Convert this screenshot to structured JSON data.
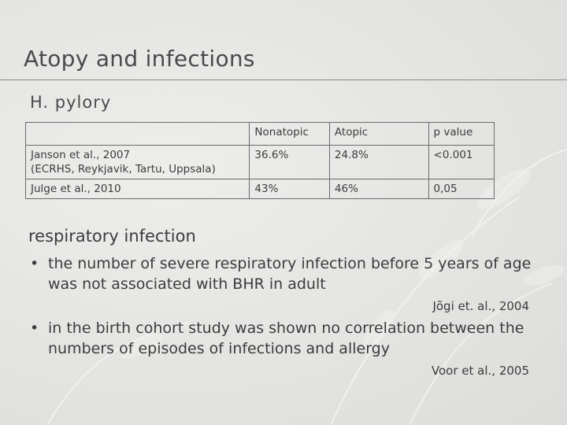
{
  "slide": {
    "title": "Atopy and infections",
    "subtitle": "H. pylory"
  },
  "table": {
    "headers": [
      "",
      "Nonatopic",
      "Atopic",
      "p value"
    ],
    "rows": [
      {
        "study_line1": "Janson et al., 2007",
        "study_line2": "(ECRHS, Reykjavik, Tartu, Uppsala)",
        "nonatopic": "36.6%",
        "atopic": "24.8%",
        "p_value": "<0.001"
      },
      {
        "study_line1": "Julge et al., 2010",
        "study_line2": "",
        "nonatopic": "43%",
        "atopic": "46%",
        "p_value": "0,05"
      }
    ]
  },
  "section": {
    "heading": "respiratory infection",
    "bullets": [
      {
        "text": "the number of severe respiratory infection before 5 years of age was not associated with BHR in adult",
        "citation": "Jõgi et. al., 2004"
      },
      {
        "text": "in the birth cohort study was shown no correlation between the numbers of episodes of infections and allergy",
        "citation": "Voor et al., 2005"
      }
    ],
    "bullet_glyph": "•"
  }
}
